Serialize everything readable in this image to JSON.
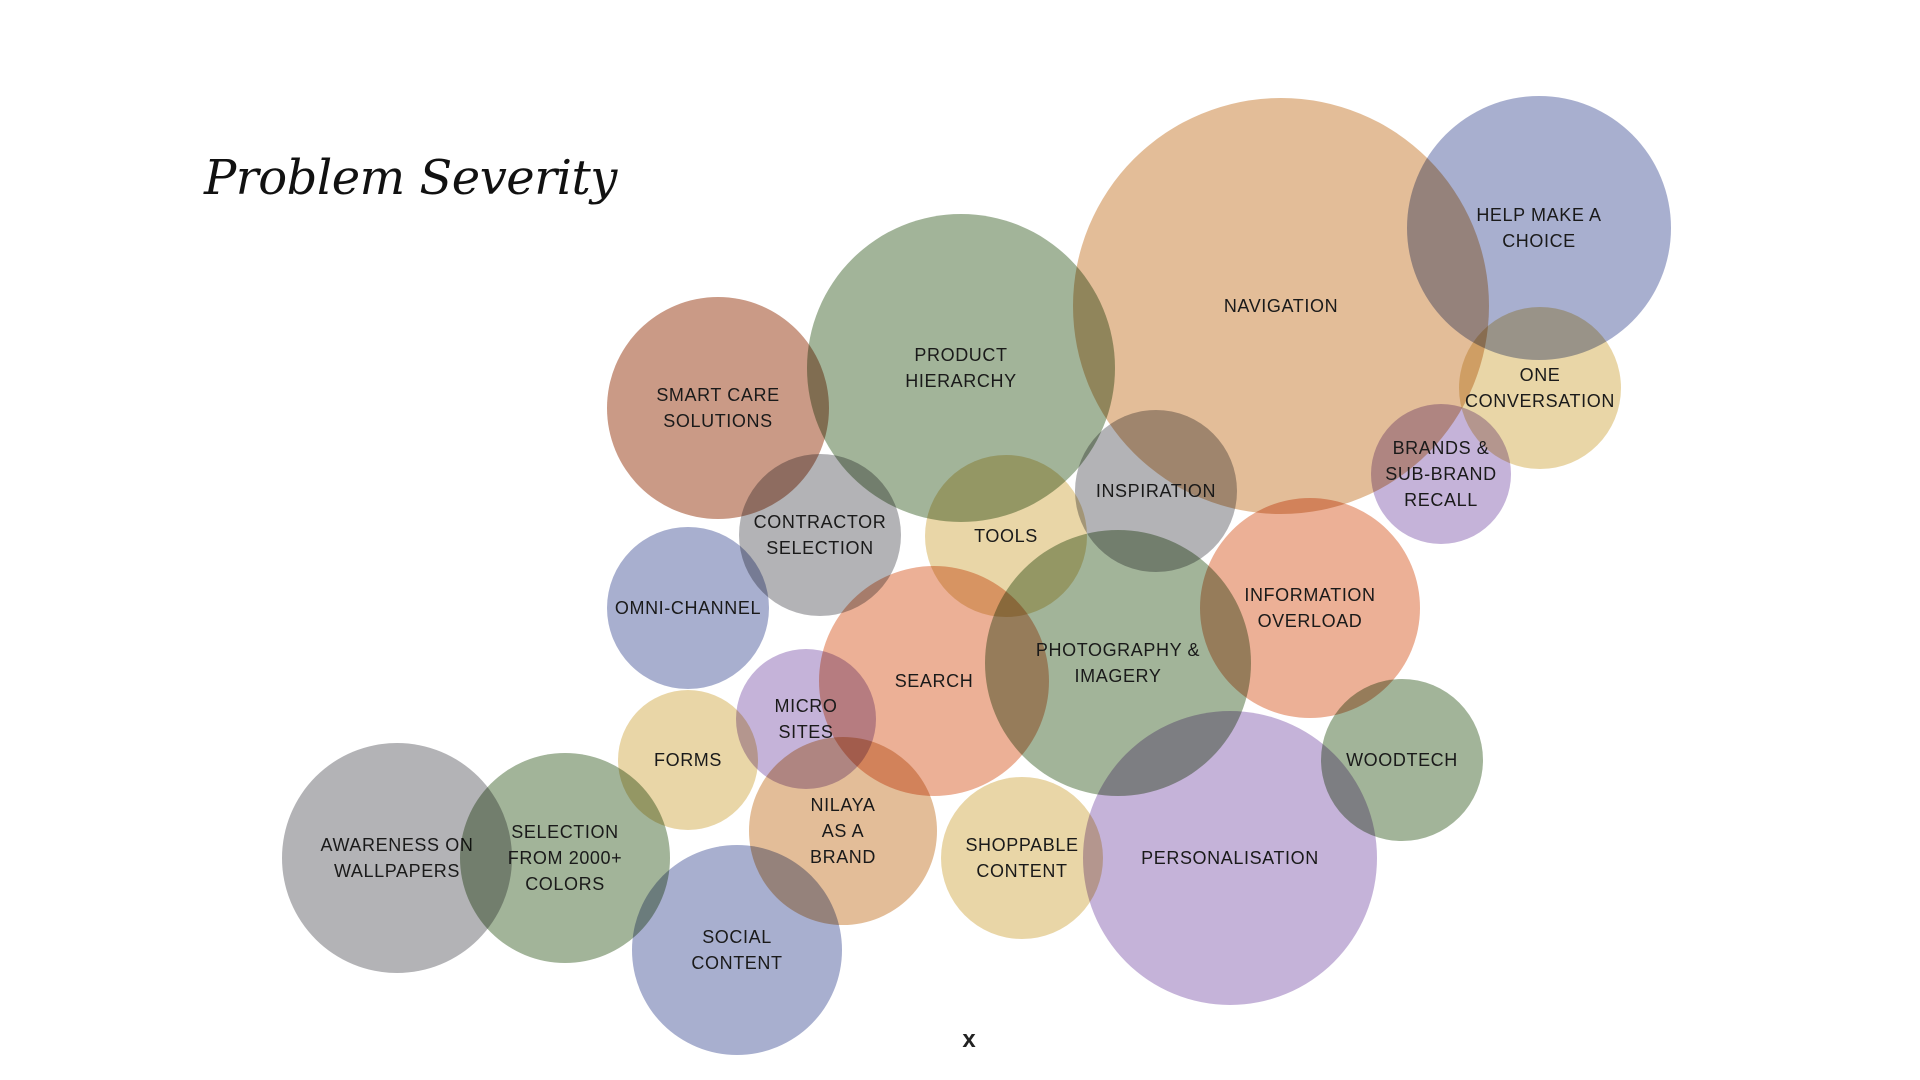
{
  "title": "Problem Severity",
  "close_label": "x",
  "colors": {
    "tan": "#e1b78f",
    "blue": "#a1a8cb",
    "green": "#9aae90",
    "rust": "#c6917c",
    "gray": "#adacb0",
    "yellow": "#e7d3a0",
    "purple": "#c0add6",
    "salmon": "#eaa98d"
  },
  "bubbles": [
    {
      "id": "navigation",
      "lines": [
        "NAVIGATION"
      ],
      "color": "tan"
    },
    {
      "id": "help-make-a-choice",
      "lines": [
        "HELP MAKE A",
        "CHOICE"
      ],
      "color": "blue"
    },
    {
      "id": "product-hierarchy",
      "lines": [
        "PRODUCT",
        "HIERARCHY"
      ],
      "color": "green"
    },
    {
      "id": "smart-care-solutions",
      "lines": [
        "SMART CARE",
        "SOLUTIONS"
      ],
      "color": "rust"
    },
    {
      "id": "one-conversation",
      "lines": [
        "ONE",
        "CONVERSATION"
      ],
      "color": "yellow"
    },
    {
      "id": "brands-sub-brand-recall",
      "lines": [
        "BRANDS &",
        "SUB-BRAND",
        "RECALL"
      ],
      "color": "purple"
    },
    {
      "id": "inspiration",
      "lines": [
        "INSPIRATION"
      ],
      "color": "gray"
    },
    {
      "id": "contractor-selection",
      "lines": [
        "CONTRACTOR",
        "SELECTION"
      ],
      "color": "gray"
    },
    {
      "id": "tools",
      "lines": [
        "TOOLS"
      ],
      "color": "yellow"
    },
    {
      "id": "information-overload",
      "lines": [
        "INFORMATION",
        "OVERLOAD"
      ],
      "color": "salmon"
    },
    {
      "id": "omni-channel",
      "lines": [
        "OMNI-CHANNEL"
      ],
      "color": "blue"
    },
    {
      "id": "search",
      "lines": [
        "SEARCH"
      ],
      "color": "salmon"
    },
    {
      "id": "photography-imagery",
      "lines": [
        "PHOTOGRAPHY &",
        "IMAGERY"
      ],
      "color": "green"
    },
    {
      "id": "forms",
      "lines": [
        "FORMS"
      ],
      "color": "yellow"
    },
    {
      "id": "micro-sites",
      "lines": [
        "MICRO",
        "SITES"
      ],
      "color": "purple"
    },
    {
      "id": "woodtech",
      "lines": [
        "WOODTECH"
      ],
      "color": "green"
    },
    {
      "id": "nilaya-as-a-brand",
      "lines": [
        "NILAYA",
        "AS A",
        "BRAND"
      ],
      "color": "tan"
    },
    {
      "id": "shoppable-content",
      "lines": [
        "SHOPPABLE",
        "CONTENT"
      ],
      "color": "yellow"
    },
    {
      "id": "personalisation",
      "lines": [
        "PERSONALISATION"
      ],
      "color": "purple"
    },
    {
      "id": "awareness-on-wallpapers",
      "lines": [
        "AWARENESS ON",
        "WALLPAPERS"
      ],
      "color": "gray"
    },
    {
      "id": "selection-from-2000-colors",
      "lines": [
        "SELECTION",
        "FROM 2000+",
        "COLORS"
      ],
      "color": "green"
    },
    {
      "id": "social-content",
      "lines": [
        "SOCIAL",
        "CONTENT"
      ],
      "color": "blue"
    }
  ]
}
